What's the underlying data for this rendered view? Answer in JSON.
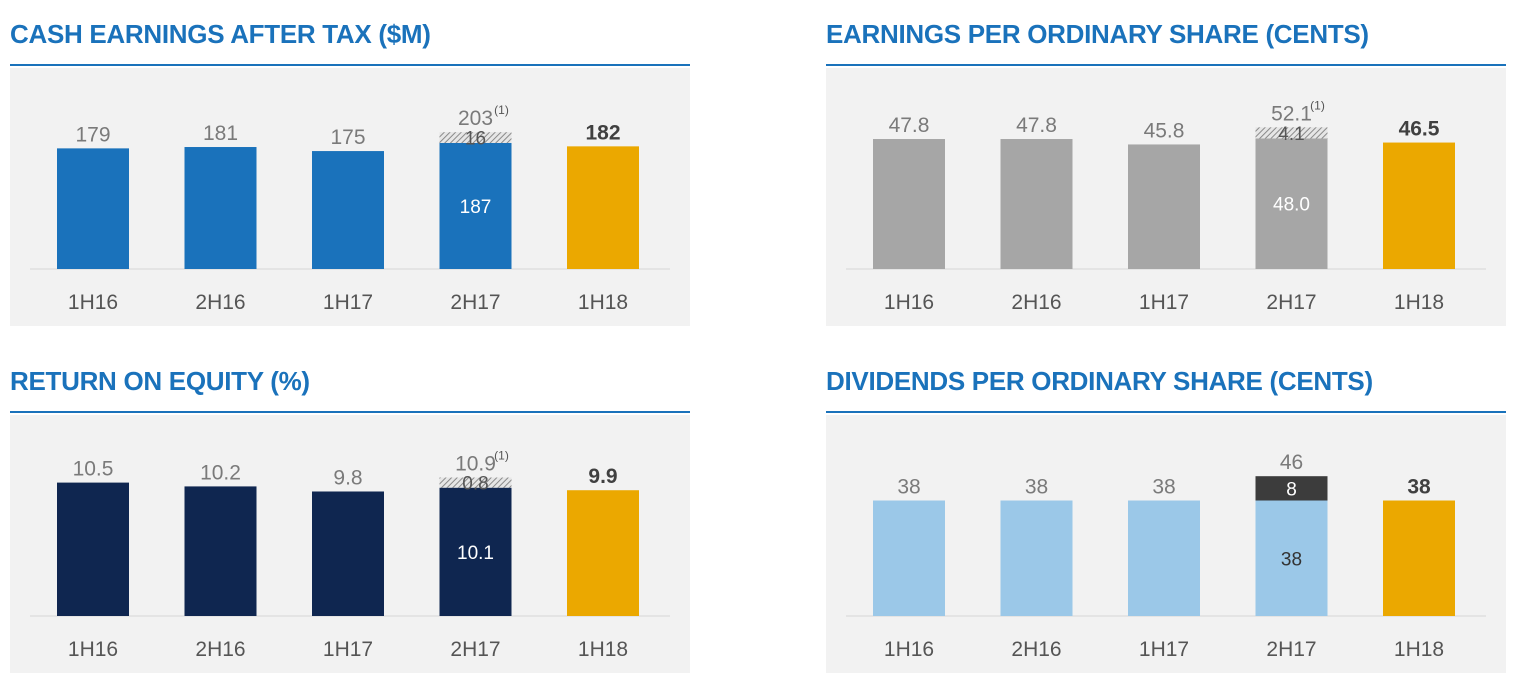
{
  "colors": {
    "title": "#1a72bb",
    "rule": "#1a72bb",
    "panel_bg": "#f2f2f2",
    "highlight": "#eba800",
    "label_gray": "#7a7a7a",
    "axis_text": "#555555"
  },
  "chart_data": [
    {
      "type": "bar",
      "title": "CASH EARNINGS AFTER TAX ($M)",
      "categories": [
        "1H16",
        "2H16",
        "1H17",
        "2H17",
        "1H18"
      ],
      "values": [
        179,
        181,
        175,
        203,
        182
      ],
      "labels": [
        "179",
        "181",
        "175",
        "203",
        "182"
      ],
      "stack_base": {
        "index": 3,
        "value": 187,
        "label": "187"
      },
      "stack_top": {
        "index": 3,
        "value": 16,
        "label": "16",
        "pattern": "hatched"
      },
      "footnote": {
        "index": 3,
        "text": "(1)"
      },
      "highlight_index": 4,
      "bar_color": "#1a72bb",
      "base_label_color": "#ffffff",
      "ylim": [
        0,
        230
      ]
    },
    {
      "type": "bar",
      "title": "EARNINGS PER ORDINARY SHARE (CENTS)",
      "categories": [
        "1H16",
        "2H16",
        "1H17",
        "2H17",
        "1H18"
      ],
      "values": [
        47.8,
        47.8,
        45.8,
        52.1,
        46.5
      ],
      "labels": [
        "47.8",
        "47.8",
        "45.8",
        "52.1",
        "46.5"
      ],
      "stack_base": {
        "index": 3,
        "value": 48.0,
        "label": "48.0"
      },
      "stack_top": {
        "index": 3,
        "value": 4.1,
        "label": "4.1",
        "pattern": "hatched"
      },
      "footnote": {
        "index": 3,
        "text": "(1)"
      },
      "highlight_index": 4,
      "bar_color": "#a6a6a6",
      "base_label_color": "#ffffff",
      "ylim": [
        0,
        57
      ]
    },
    {
      "type": "bar",
      "title": "RETURN ON EQUITY (%)",
      "categories": [
        "1H16",
        "2H16",
        "1H17",
        "2H17",
        "1H18"
      ],
      "values": [
        10.5,
        10.2,
        9.8,
        10.9,
        9.9
      ],
      "labels": [
        "10.5",
        "10.2",
        "9.8",
        "10.9",
        "9.9"
      ],
      "stack_base": {
        "index": 3,
        "value": 10.1,
        "label": "10.1"
      },
      "stack_top": {
        "index": 3,
        "value": 0.8,
        "label": "0.8",
        "pattern": "hatched"
      },
      "footnote": {
        "index": 3,
        "text": "(1)"
      },
      "highlight_index": 4,
      "bar_color": "#0f2650",
      "base_label_color": "#ffffff",
      "ylim": [
        0,
        12.2
      ]
    },
    {
      "type": "bar",
      "title": "DIVIDENDS PER ORDINARY SHARE (CENTS)",
      "categories": [
        "1H16",
        "2H16",
        "1H17",
        "2H17",
        "1H18"
      ],
      "values": [
        38,
        38,
        38,
        46,
        38
      ],
      "labels": [
        "38",
        "38",
        "38",
        "46",
        "38"
      ],
      "stack_base": {
        "index": 3,
        "value": 38,
        "label": "38"
      },
      "stack_top": {
        "index": 3,
        "value": 8,
        "label": "8",
        "pattern": "solid",
        "color": "#3c3c3c"
      },
      "footnote": null,
      "highlight_index": 4,
      "bar_color": "#9bc8e8",
      "base_label_color": "#333333",
      "ylim": [
        0,
        51
      ]
    }
  ]
}
